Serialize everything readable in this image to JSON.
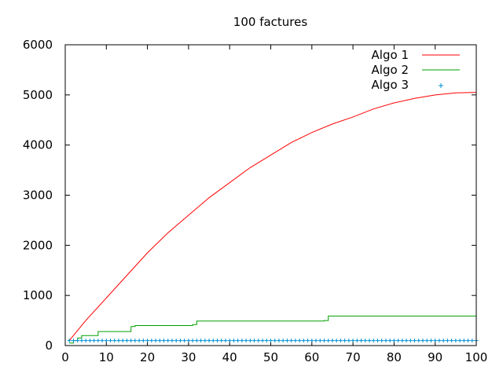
{
  "chart_data": {
    "type": "line",
    "title": "100 factures",
    "xlabel": "",
    "ylabel": "",
    "xlim": [
      0,
      100
    ],
    "ylim": [
      0,
      6000
    ],
    "xticks": [
      0,
      10,
      20,
      30,
      40,
      50,
      60,
      70,
      80,
      90,
      100
    ],
    "yticks": [
      0,
      1000,
      2000,
      3000,
      4000,
      5000,
      6000
    ],
    "legend_position": "top-right",
    "series": [
      {
        "name": "Algo 1",
        "style": "line",
        "color": "#ff0000",
        "x": [
          1,
          2,
          5,
          10,
          15,
          20,
          25,
          30,
          35,
          40,
          45,
          50,
          55,
          60,
          65,
          70,
          75,
          80,
          85,
          90,
          95,
          100
        ],
        "y": [
          100,
          200,
          500,
          950,
          1400,
          1850,
          2250,
          2600,
          2950,
          3250,
          3550,
          3800,
          4050,
          4250,
          4420,
          4560,
          4720,
          4840,
          4930,
          5000,
          5040,
          5050
        ]
      },
      {
        "name": "Algo 2",
        "style": "step",
        "color": "#00a000",
        "x": [
          1,
          2,
          3,
          4,
          8,
          16,
          17,
          31,
          32,
          63,
          64,
          100
        ],
        "y": [
          50,
          100,
          150,
          200,
          280,
          380,
          400,
          420,
          490,
          500,
          590,
          590
        ]
      },
      {
        "name": "Algo 3",
        "style": "points",
        "color": "#0090d0",
        "x_range": [
          1,
          100
        ],
        "y": 100
      }
    ]
  }
}
